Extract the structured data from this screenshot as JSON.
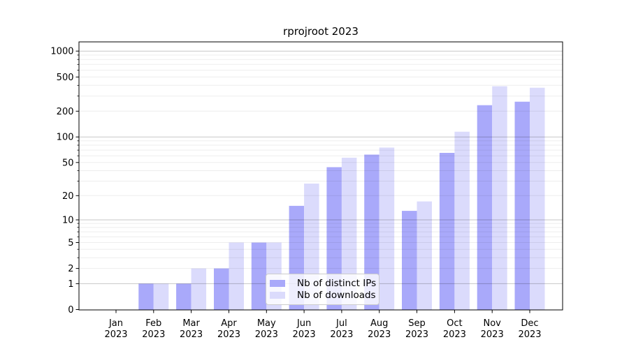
{
  "chart_data": {
    "type": "bar",
    "title": "rprojroot 2023",
    "year_label": "2023",
    "months": [
      "Jan",
      "Feb",
      "Mar",
      "Apr",
      "May",
      "Jun",
      "Jul",
      "Aug",
      "Sep",
      "Oct",
      "Nov",
      "Dec"
    ],
    "series": [
      {
        "name": "Nb of distinct IPs",
        "color": "#a9a9fa",
        "values": [
          0,
          1,
          1,
          2,
          5,
          15,
          44,
          62,
          13,
          65,
          235,
          258
        ]
      },
      {
        "name": "Nb of downloads",
        "color": "#dbdbfc",
        "values": [
          0,
          1,
          2,
          5,
          5,
          28,
          57,
          75,
          17,
          115,
          390,
          375
        ]
      }
    ],
    "yscale": "log1p",
    "yticks": [
      0,
      1,
      2,
      5,
      10,
      20,
      50,
      100,
      200,
      500,
      1000
    ],
    "ylim": [
      0,
      1280
    ],
    "grid": true,
    "legend_location": "lower center",
    "colors": {
      "spine": "#000000",
      "grid_major": "rgba(0,0,0,0.22)",
      "grid_minor": "rgba(0,0,0,0.07)",
      "text": "#000000"
    }
  }
}
